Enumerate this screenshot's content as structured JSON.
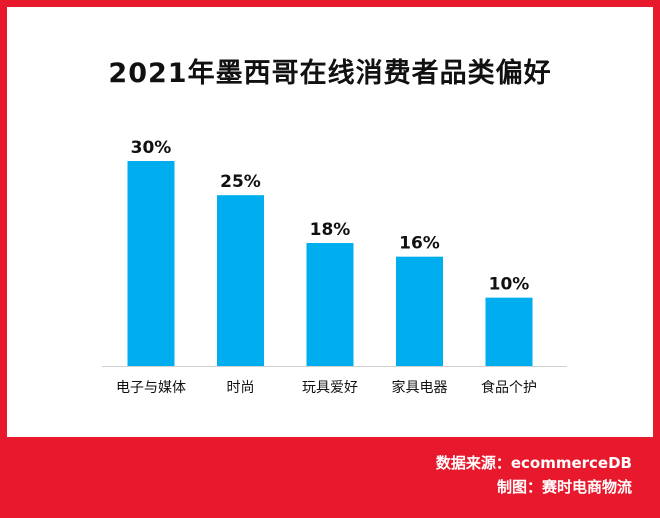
{
  "chart_data": {
    "type": "bar",
    "title": "2021年墨西哥在线消费者品类偏好",
    "categories": [
      "电子与媒体",
      "时尚",
      "玩具爱好",
      "家具电器",
      "食品个护"
    ],
    "values": [
      30,
      25,
      18,
      16,
      10
    ],
    "value_labels": [
      "30%",
      "25%",
      "18%",
      "16%",
      "10%"
    ],
    "unit": "%",
    "ylim": [
      0,
      30
    ],
    "bar_color": "#00aeef",
    "grid": false
  },
  "footer": {
    "source": "数据来源：ecommerceDB",
    "credit": "制图：赛时电商物流"
  },
  "colors": {
    "background": "#e8192c",
    "panel": "#ffffff"
  }
}
